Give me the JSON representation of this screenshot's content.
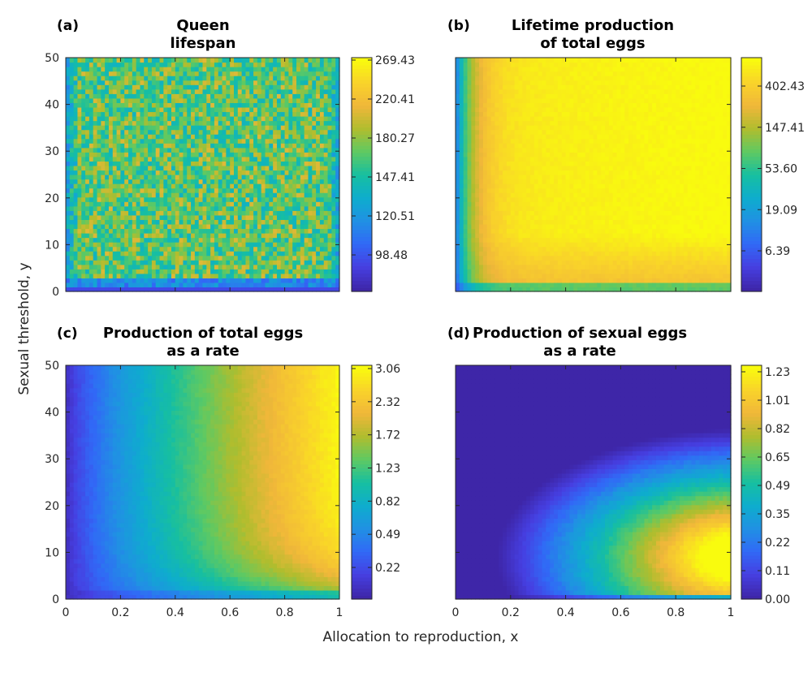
{
  "figure": {
    "xlabel": "Allocation to reproduction,  x",
    "ylabel": "Sexual threshold,  y"
  },
  "chart_data": [
    {
      "type": "heatmap",
      "panel_label": "(a)",
      "title": [
        "Queen",
        "lifespan"
      ],
      "xlim": [
        0,
        1
      ],
      "ylim": [
        0,
        50
      ],
      "x_ticks": [
        "0",
        "0.2",
        "0.4",
        "0.6",
        "0.8",
        "1"
      ],
      "y_ticks": [
        "0",
        "10",
        "20",
        "30",
        "40",
        "50"
      ],
      "colorbar_ticks": [
        "98.48",
        "120.51",
        "147.41",
        "180.27",
        "220.41",
        "269.43"
      ],
      "colormap": "parula",
      "pattern": "noisy plateau ~190-230 in interior; lower (~120-150) near y=0 and near x=0 and x=1 edges"
    },
    {
      "type": "heatmap",
      "panel_label": "(b)",
      "title": [
        "Lifetime production",
        "of total eggs"
      ],
      "xlim": [
        0,
        1
      ],
      "ylim": [
        0,
        50
      ],
      "x_ticks": [
        "0",
        "0.2",
        "0.4",
        "0.6",
        "0.8",
        "1"
      ],
      "y_ticks": [
        "0",
        "10",
        "20",
        "30",
        "40",
        "50"
      ],
      "colorbar_ticks": [
        "6.39",
        "19.09",
        "53.60",
        "147.41",
        "402.43"
      ],
      "colorbar_scale": "log",
      "colormap": "parula",
      "pattern": "low near x=0 (blue strip), rising rapidly; maximum (~400+) at upper right; slightly lower orange region near y small"
    },
    {
      "type": "heatmap",
      "panel_label": "(c)",
      "title": [
        "Production of total eggs",
        "as a rate"
      ],
      "xlim": [
        0,
        1
      ],
      "ylim": [
        0,
        50
      ],
      "x_ticks": [
        "0",
        "0.2",
        "0.4",
        "0.6",
        "0.8",
        "1"
      ],
      "y_ticks": [
        "0",
        "10",
        "20",
        "30",
        "40",
        "50"
      ],
      "colorbar_ticks": [
        "0.22",
        "0.49",
        "0.82",
        "1.23",
        "1.72",
        "2.32",
        "3.06"
      ],
      "colormap": "parula",
      "pattern": "rate increases with x; near 0 at x=0; ~3 at x=1, y=50; dips to ~1 near y=0"
    },
    {
      "type": "heatmap",
      "panel_label": "(d)",
      "title": [
        "Production of sexual eggs",
        "as a rate"
      ],
      "xlim": [
        0,
        1
      ],
      "ylim": [
        0,
        50
      ],
      "x_ticks": [
        "0",
        "0.2",
        "0.4",
        "0.6",
        "0.8",
        "1"
      ],
      "y_ticks": [
        "0",
        "10",
        "20",
        "30",
        "40",
        "50"
      ],
      "colorbar_ticks": [
        "0.00",
        "0.11",
        "0.22",
        "0.35",
        "0.49",
        "0.65",
        "0.82",
        "1.01",
        "1.23"
      ],
      "colormap": "parula",
      "pattern": "zero over most of upper-left; maximum (~1.2) at high x and y~5-15; zero along y~0 row"
    }
  ]
}
